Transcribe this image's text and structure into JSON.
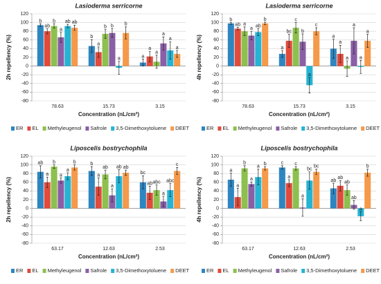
{
  "chart_data": [
    {
      "type": "bar",
      "title": "Lasioderma serricorne",
      "ylabel": "2h repellency (%)",
      "xlabel": "Concentration (nL/cm²)",
      "categories": [
        "78.63",
        "15.73",
        "3.15"
      ],
      "ylim": [
        -80,
        120
      ],
      "yticks": [
        -80,
        -60,
        -40,
        -20,
        0,
        20,
        40,
        60,
        80,
        100,
        120
      ],
      "grid": true,
      "series": [
        {
          "name": "ER",
          "color": "#2e86c1",
          "values": [
            94,
            46,
            8
          ],
          "errors": [
            3,
            15,
            8
          ],
          "letters": [
            "b",
            "b",
            "a"
          ]
        },
        {
          "name": "EL",
          "color": "#e04b3c",
          "values": [
            80,
            32,
            22
          ],
          "errors": [
            6,
            12,
            12
          ],
          "letters": [
            "ab",
            "a",
            "a"
          ]
        },
        {
          "name": "Methyleugenol",
          "color": "#8dc04e",
          "values": [
            92,
            74,
            10
          ],
          "errors": [
            5,
            10,
            15
          ],
          "letters": [
            "b",
            "b",
            "a"
          ]
        },
        {
          "name": "Safrole",
          "color": "#8a5fa6",
          "values": [
            66,
            76,
            52
          ],
          "errors": [
            12,
            10,
            15
          ],
          "letters": [
            "a",
            "b",
            "a"
          ]
        },
        {
          "name": "3,5-Dimethoxytoluene",
          "color": "#25b4d4",
          "values": [
            92,
            -4,
            36
          ],
          "errors": [
            4,
            15,
            20
          ],
          "letters": [
            "ab",
            "a",
            "a"
          ]
        },
        {
          "name": "DEET",
          "color": "#f59a4a",
          "values": [
            88,
            76,
            28
          ],
          "errors": [
            6,
            14,
            8
          ],
          "letters": [
            "ab",
            "b",
            "a"
          ]
        }
      ]
    },
    {
      "type": "bar",
      "title": "Lasioderma serricorne",
      "ylabel": "4h repellency (%)",
      "xlabel": "Concentration (nL/cm²)",
      "categories": [
        "78.63",
        "15.73",
        "3.15"
      ],
      "ylim": [
        -80,
        120
      ],
      "yticks": [
        -80,
        -60,
        -40,
        -20,
        0,
        20,
        40,
        60,
        80,
        100,
        120
      ],
      "grid": true,
      "series": [
        {
          "name": "ER",
          "color": "#2e86c1",
          "values": [
            98,
            28,
            40
          ],
          "errors": [
            2,
            8,
            22
          ],
          "letters": [
            "b",
            "a",
            "a"
          ]
        },
        {
          "name": "EL",
          "color": "#e04b3c",
          "values": [
            86,
            58,
            28
          ],
          "errors": [
            3,
            15,
            20
          ],
          "letters": [
            "ab",
            "bc",
            "a"
          ]
        },
        {
          "name": "Methyleugenol",
          "color": "#8dc04e",
          "values": [
            80,
            88,
            -6
          ],
          "errors": [
            10,
            12,
            18
          ],
          "letters": [
            "a",
            "c",
            "a"
          ]
        },
        {
          "name": "Safrole",
          "color": "#8a5fa6",
          "values": [
            70,
            56,
            58
          ],
          "errors": [
            10,
            18,
            30
          ],
          "letters": [
            "a",
            "b",
            "a"
          ]
        },
        {
          "name": "3,5-Dimethoxytoluene",
          "color": "#25b4d4",
          "values": [
            78,
            -44,
            -2
          ],
          "errors": [
            8,
            18,
            15
          ],
          "letters": [
            "ab",
            "a",
            "a"
          ]
        },
        {
          "name": "DEET",
          "color": "#f59a4a",
          "values": [
            98,
            80,
            58
          ],
          "errors": [
            3,
            8,
            15
          ],
          "letters": [
            "b",
            "c",
            "a"
          ]
        }
      ]
    },
    {
      "type": "bar",
      "title": "Liposcelis bostrychophila",
      "ylabel": "2h repellency (%)",
      "xlabel": "Concentration (nL/cm²)",
      "categories": [
        "63.17",
        "12.63",
        "2.53"
      ],
      "ylim": [
        -80,
        120
      ],
      "yticks": [
        -80,
        -60,
        -40,
        -20,
        0,
        20,
        40,
        60,
        80,
        100,
        120
      ],
      "grid": true,
      "series": [
        {
          "name": "ER",
          "color": "#2e86c1",
          "values": [
            84,
            86,
            60
          ],
          "errors": [
            14,
            10,
            15
          ],
          "letters": [
            "ab",
            "b",
            "bc"
          ]
        },
        {
          "name": "EL",
          "color": "#e04b3c",
          "values": [
            60,
            50,
            36
          ],
          "errors": [
            12,
            20,
            15
          ],
          "letters": [
            "a",
            "a",
            "ab"
          ]
        },
        {
          "name": "Methyleugenol",
          "color": "#8dc04e",
          "values": [
            96,
            78,
            42
          ],
          "errors": [
            4,
            10,
            12
          ],
          "letters": [
            "b",
            "ab",
            "abc"
          ]
        },
        {
          "name": "Safrole",
          "color": "#8a5fa6",
          "values": [
            64,
            30,
            16
          ],
          "errors": [
            6,
            15,
            12
          ],
          "letters": [
            "a",
            "a",
            "a"
          ]
        },
        {
          "name": "3,5-Dimethoxytoluene",
          "color": "#25b4d4",
          "values": [
            74,
            74,
            42
          ],
          "errors": [
            8,
            15,
            15
          ],
          "letters": [
            "a",
            "ab",
            "abc"
          ]
        },
        {
          "name": "DEET",
          "color": "#f59a4a",
          "values": [
            94,
            82,
            86
          ],
          "errors": [
            6,
            6,
            8
          ],
          "letters": [
            "b",
            "ab",
            "c"
          ]
        }
      ]
    },
    {
      "type": "bar",
      "title": "Liposcelis bostrychophila",
      "ylabel": "4h repellency (%)",
      "xlabel": "Concentration (nL/cm²)",
      "categories": [
        "63.17",
        "12.63",
        "2.53"
      ],
      "ylim": [
        -80,
        120
      ],
      "yticks": [
        -80,
        -60,
        -40,
        -20,
        0,
        20,
        40,
        60,
        80,
        100,
        120
      ],
      "grid": true,
      "series": [
        {
          "name": "ER",
          "color": "#2e86c1",
          "values": [
            66,
            94,
            46
          ],
          "errors": [
            15,
            4,
            12
          ],
          "letters": [
            "a",
            "c",
            "ab"
          ]
        },
        {
          "name": "EL",
          "color": "#e04b3c",
          "values": [
            26,
            58,
            52
          ],
          "errors": [
            20,
            8,
            12
          ],
          "letters": [
            "a",
            "a",
            "ab"
          ]
        },
        {
          "name": "Methyleugenol",
          "color": "#8dc04e",
          "values": [
            92,
            92,
            42
          ],
          "errors": [
            6,
            4,
            12
          ],
          "letters": [
            "b",
            "c",
            "ab"
          ]
        },
        {
          "name": "Safrole",
          "color": "#8a5fa6",
          "values": [
            56,
            2,
            8
          ],
          "errors": [
            5,
            20,
            10
          ],
          "letters": [
            "a",
            "a",
            "ab"
          ]
        },
        {
          "name": "3,5-Dimethoxytoluene",
          "color": "#25b4d4",
          "values": [
            72,
            64,
            -18
          ],
          "errors": [
            18,
            20,
            10
          ],
          "letters": [
            "a",
            "bc",
            "a"
          ]
        },
        {
          "name": "DEET",
          "color": "#f59a4a",
          "values": [
            92,
            84,
            82
          ],
          "errors": [
            4,
            6,
            8
          ],
          "letters": [
            "b",
            "bc",
            "b"
          ]
        }
      ]
    }
  ]
}
